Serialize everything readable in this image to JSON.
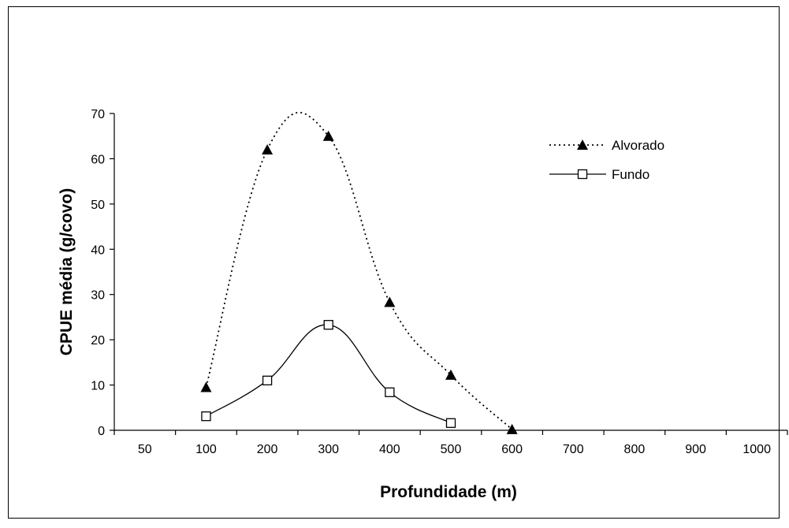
{
  "chart_data": {
    "type": "line",
    "xlabel": "Profundidade (m)",
    "ylabel": "CPUE média (g/covo)",
    "categories": [
      "50",
      "100",
      "200",
      "300",
      "400",
      "500",
      "600",
      "700",
      "800",
      "900",
      "1000"
    ],
    "ylim": [
      0,
      70
    ],
    "yticks": [
      0,
      10,
      20,
      30,
      40,
      50,
      60,
      70
    ],
    "grid": false,
    "legend_position": "top-right",
    "series": [
      {
        "name": "Alvorado",
        "marker": "triangle-filled",
        "line_style": "dotted",
        "smooth": true,
        "color": "#000000",
        "points": [
          {
            "x": "100",
            "y": 9.5
          },
          {
            "x": "200",
            "y": 62
          },
          {
            "x": "300",
            "y": 65
          },
          {
            "x": "400",
            "y": 28.3
          },
          {
            "x": "500",
            "y": 12.2
          },
          {
            "x": "600",
            "y": 0.2
          }
        ]
      },
      {
        "name": "Fundo",
        "marker": "square-open",
        "line_style": "solid",
        "smooth": true,
        "color": "#000000",
        "points": [
          {
            "x": "100",
            "y": 3.1
          },
          {
            "x": "200",
            "y": 11
          },
          {
            "x": "300",
            "y": 23.3
          },
          {
            "x": "400",
            "y": 8.4
          },
          {
            "x": "500",
            "y": 1.6
          }
        ]
      }
    ]
  }
}
